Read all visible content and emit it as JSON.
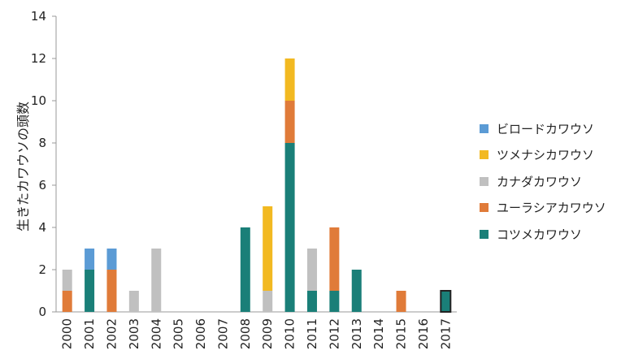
{
  "chart_data": {
    "type": "bar",
    "stacked": true,
    "ylabel": "生きたカワウソの頭数",
    "ylim": [
      0,
      14
    ],
    "yticks": [
      0,
      2,
      4,
      6,
      8,
      10,
      12,
      14
    ],
    "categories": [
      "2000",
      "2001",
      "2002",
      "2003",
      "2004",
      "2005",
      "2006",
      "2007",
      "2008",
      "2009",
      "2010",
      "2011",
      "2012",
      "2013",
      "2014",
      "2015",
      "2016",
      "2017"
    ],
    "series": [
      {
        "name": "コツメカワウソ",
        "color": "#1a7f78",
        "values": [
          0,
          2,
          0,
          0,
          0,
          0,
          0,
          0,
          4,
          0,
          8,
          1,
          1,
          2,
          0,
          0,
          0,
          1
        ]
      },
      {
        "name": "ユーラシアカワウソ",
        "color": "#e07b39",
        "values": [
          1,
          0,
          2,
          0,
          0,
          0,
          0,
          0,
          0,
          0,
          2,
          0,
          3,
          0,
          0,
          1,
          0,
          0
        ]
      },
      {
        "name": "カナダカワウソ",
        "color": "#c0c0c0",
        "values": [
          1,
          0,
          0,
          1,
          3,
          0,
          0,
          0,
          0,
          1,
          0,
          2,
          0,
          0,
          0,
          0,
          0,
          0
        ]
      },
      {
        "name": "ツメナシカワウソ",
        "color": "#f2b921",
        "values": [
          0,
          0,
          0,
          0,
          0,
          0,
          0,
          0,
          0,
          4,
          2,
          0,
          0,
          0,
          0,
          0,
          0,
          0
        ]
      },
      {
        "name": "ビロードカワウソ",
        "color": "#5b9bd5",
        "values": [
          0,
          1,
          1,
          0,
          0,
          0,
          0,
          0,
          0,
          0,
          0,
          0,
          0,
          0,
          0,
          0,
          0,
          0
        ]
      }
    ],
    "legend_order": [
      "ビロードカワウソ",
      "ツメナシカワウソ",
      "カナダカワウソ",
      "ユーラシアカワウソ",
      "コツメカワウソ"
    ],
    "legend_position": "right",
    "outlined_bar": "2017",
    "grid": false
  }
}
